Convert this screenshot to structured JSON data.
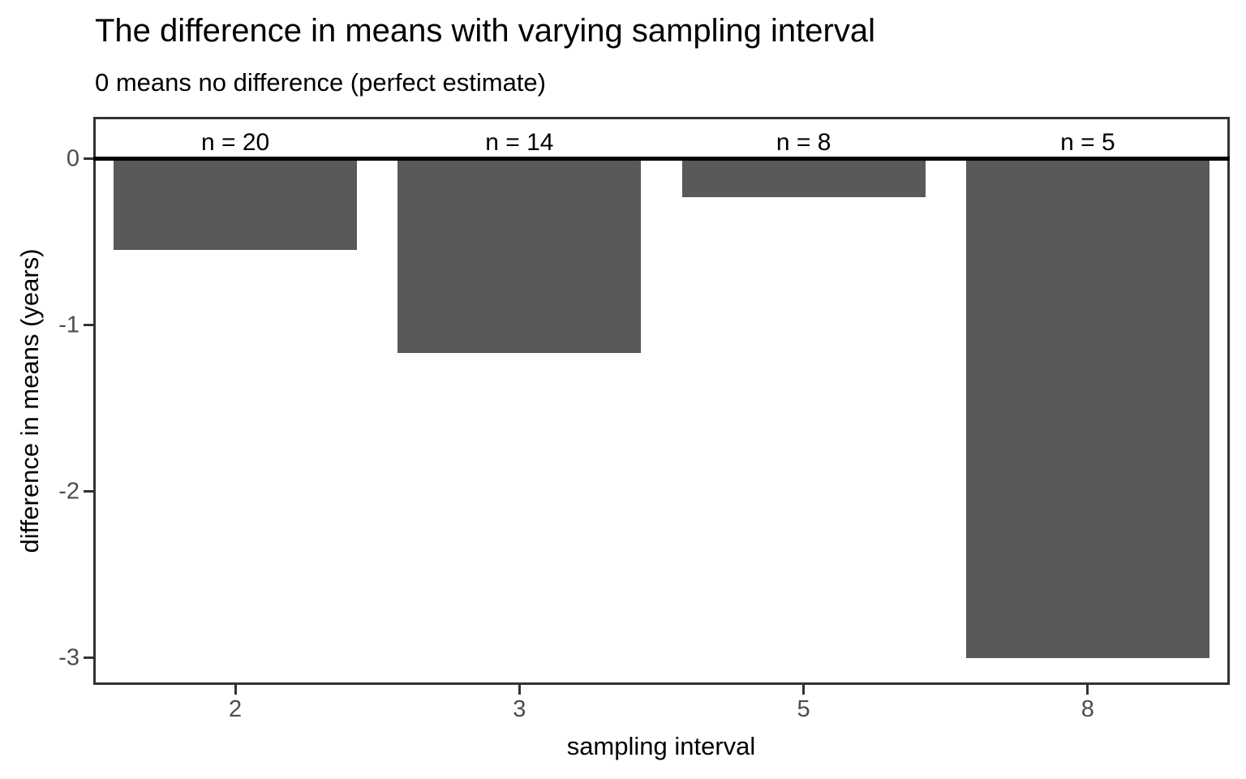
{
  "chart_data": {
    "type": "bar",
    "title": "The difference in means with varying sampling interval",
    "subtitle": "0 means no difference (perfect estimate)",
    "xlabel": "sampling interval",
    "ylabel": "difference in means (years)",
    "categories": [
      "2",
      "3",
      "5",
      "8"
    ],
    "values": [
      -0.55,
      -1.17,
      -0.23,
      -3.0
    ],
    "bar_labels": [
      "n = 20",
      "n = 14",
      "n = 8",
      "n = 5"
    ],
    "yticks": [
      0,
      -1,
      -2,
      -3
    ],
    "ytick_labels": [
      "0",
      "-1",
      "-2",
      "-3"
    ],
    "ylim": [
      -3.16,
      0.25
    ],
    "grid": false,
    "zero_line_value": 0,
    "legend": "none",
    "colors": {
      "bar_fill": "#595959",
      "panel_border": "#333333",
      "zero_line": "#000000",
      "tick_text": "#4d4d4d",
      "title_text": "#000000",
      "background": "#ffffff"
    }
  }
}
